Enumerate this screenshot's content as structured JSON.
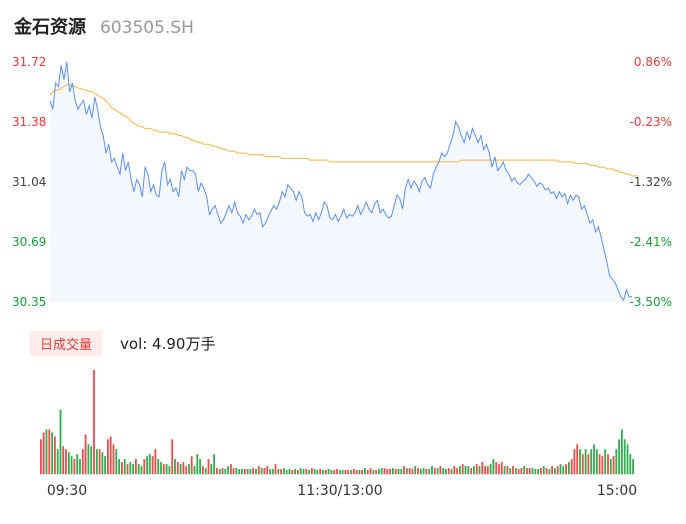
{
  "header": {
    "name": "金石资源",
    "code": "603505.SH"
  },
  "vol_tag": "日成交量",
  "vol_text": "vol: 4.90万手",
  "colors": {
    "price": "#5b8ff9",
    "avg": "#f5b540",
    "up": "#f04a4a",
    "down": "#2eae4e",
    "text_up": "#e83a3a",
    "text_down": "#1a9c3c"
  },
  "chart_data": [
    {
      "type": "line",
      "title": "",
      "x_ticks": [
        "09:30",
        "11:30/13:00",
        "15:00"
      ],
      "y_ticks_left": [
        "31.72",
        "31.38",
        "31.04",
        "30.69",
        "30.35"
      ],
      "y_ticks_right": [
        "0.86%",
        "-0.23%",
        "-1.32%",
        "-2.41%",
        "-3.50%"
      ],
      "ylim": [
        30.35,
        31.72
      ],
      "series": [
        {
          "values": [
            31.5,
            31.45,
            31.6,
            31.58,
            31.7,
            31.62,
            31.72,
            31.55,
            31.6,
            31.5,
            31.45,
            31.48,
            31.5,
            31.42,
            31.47,
            31.4,
            31.52,
            31.45,
            31.35,
            31.3,
            31.2,
            31.25,
            31.15,
            31.17,
            31.12,
            31.08,
            31.2,
            31.1,
            31.15,
            31.05,
            30.98,
            31.05,
            31.02,
            30.95,
            31.12,
            31.08,
            30.98,
            31.02,
            30.96,
            30.95,
            31.1,
            31.15,
            31.02,
            31.05,
            30.98,
            31.0,
            30.95,
            31.1,
            31.05,
            31.12,
            31.1,
            31.1,
            31.08,
            30.98,
            31.03,
            31.0,
            30.95,
            30.85,
            30.88,
            30.9,
            30.85,
            30.8,
            30.82,
            30.86,
            30.9,
            30.86,
            30.92,
            30.86,
            30.84,
            30.8,
            30.85,
            30.82,
            30.84,
            30.88,
            30.85,
            30.86,
            30.78,
            30.8,
            30.84,
            30.87,
            30.9,
            30.88,
            30.92,
            30.98,
            30.95,
            31.02,
            31.0,
            30.98,
            30.93,
            30.98,
            30.95,
            30.86,
            30.84,
            30.85,
            30.81,
            30.86,
            30.82,
            30.86,
            30.92,
            30.9,
            30.83,
            30.82,
            30.85,
            30.81,
            30.84,
            30.88,
            30.83,
            30.85,
            30.84,
            30.86,
            30.9,
            30.85,
            30.88,
            30.92,
            30.88,
            30.86,
            30.91,
            30.93,
            30.86,
            30.88,
            30.85,
            30.83,
            30.84,
            30.9,
            30.96,
            30.94,
            30.88,
            31.0,
            31.05,
            31.0,
            31.04,
            31.02,
            30.98,
            31.04,
            31.06,
            31.02,
            31.0,
            31.08,
            31.12,
            31.15,
            31.2,
            31.18,
            31.2,
            31.25,
            31.3,
            31.38,
            31.35,
            31.3,
            31.26,
            31.32,
            31.28,
            31.34,
            31.3,
            31.26,
            31.3,
            31.22,
            31.25,
            31.2,
            31.12,
            31.18,
            31.1,
            31.12,
            31.15,
            31.1,
            31.08,
            31.04,
            31.06,
            31.03,
            31.02,
            31.04,
            31.05,
            31.08,
            31.06,
            31.04,
            31.01,
            31.03,
            31.02,
            30.99,
            31.0,
            30.97,
            30.98,
            30.94,
            30.98,
            30.95,
            30.97,
            30.91,
            30.96,
            30.93,
            30.96,
            30.95,
            30.88,
            30.9,
            30.85,
            30.8,
            30.82,
            30.75,
            30.78,
            30.72,
            30.65,
            30.58,
            30.5,
            30.48,
            30.46,
            30.42,
            30.38,
            30.36,
            30.42,
            30.38,
            30.38
          ]
        },
        {
          "values": [
            31.53,
            31.55,
            31.56,
            31.56,
            31.57,
            31.58,
            31.59,
            31.59,
            31.58,
            31.58,
            31.57,
            31.57,
            31.56,
            31.56,
            31.55,
            31.55,
            31.54,
            31.53,
            31.52,
            31.51,
            31.5,
            31.48,
            31.46,
            31.45,
            31.44,
            31.43,
            31.42,
            31.41,
            31.4,
            31.38,
            31.37,
            31.36,
            31.35,
            31.35,
            31.34,
            31.34,
            31.34,
            31.33,
            31.33,
            31.32,
            31.32,
            31.32,
            31.32,
            31.31,
            31.31,
            31.31,
            31.3,
            31.3,
            31.29,
            31.29,
            31.28,
            31.27,
            31.27,
            31.26,
            31.26,
            31.25,
            31.25,
            31.25,
            31.24,
            31.24,
            31.23,
            31.23,
            31.22,
            31.22,
            31.21,
            31.21,
            31.21,
            31.2,
            31.2,
            31.2,
            31.2,
            31.19,
            31.19,
            31.19,
            31.19,
            31.19,
            31.19,
            31.18,
            31.18,
            31.18,
            31.18,
            31.18,
            31.18,
            31.17,
            31.17,
            31.17,
            31.17,
            31.17,
            31.17,
            31.17,
            31.17,
            31.17,
            31.17,
            31.16,
            31.16,
            31.16,
            31.16,
            31.16,
            31.16,
            31.16,
            31.15,
            31.15,
            31.15,
            31.15,
            31.15,
            31.15,
            31.15,
            31.15,
            31.15,
            31.15,
            31.15,
            31.15,
            31.15,
            31.15,
            31.15,
            31.15,
            31.15,
            31.15,
            31.15,
            31.15,
            31.15,
            31.15,
            31.15,
            31.15,
            31.15,
            31.15,
            31.15,
            31.15,
            31.15,
            31.15,
            31.15,
            31.15,
            31.15,
            31.15,
            31.15,
            31.15,
            31.15,
            31.15,
            31.15,
            31.15,
            31.15,
            31.15,
            31.15,
            31.15,
            31.15,
            31.15,
            31.15,
            31.16,
            31.16,
            31.16,
            31.16,
            31.16,
            31.16,
            31.16,
            31.16,
            31.16,
            31.16,
            31.16,
            31.16,
            31.16,
            31.16,
            31.16,
            31.16,
            31.16,
            31.16,
            31.16,
            31.16,
            31.16,
            31.16,
            31.16,
            31.16,
            31.16,
            31.16,
            31.16,
            31.16,
            31.16,
            31.16,
            31.16,
            31.16,
            31.16,
            31.16,
            31.16,
            31.15,
            31.15,
            31.15,
            31.15,
            31.15,
            31.15,
            31.14,
            31.14,
            31.14,
            31.14,
            31.14,
            31.13,
            31.13,
            31.13,
            31.12,
            31.12,
            31.12,
            31.11,
            31.11,
            31.11,
            31.1,
            31.1,
            31.09,
            31.09,
            31.08,
            31.08,
            31.07,
            31.07,
            31.07
          ]
        }
      ]
    },
    {
      "type": "bar",
      "title": "",
      "up": [
        1,
        1,
        0,
        1,
        0,
        1,
        0,
        0,
        1,
        1,
        0,
        0,
        1,
        0,
        0,
        1,
        1,
        0,
        0,
        1,
        0,
        1,
        0,
        0,
        1,
        1,
        1,
        0,
        0,
        1,
        0,
        1,
        0,
        0,
        1,
        0,
        0,
        1,
        0,
        0,
        1,
        1,
        0,
        0,
        1,
        0,
        0,
        1,
        0,
        1,
        0,
        1,
        1,
        0,
        1,
        0,
        0,
        0,
        1,
        0,
        1,
        0,
        0,
        1,
        0,
        1,
        0,
        0,
        1,
        1,
        0,
        0,
        0,
        1,
        0,
        0,
        1,
        0,
        1,
        0,
        1,
        1,
        0,
        0,
        1,
        0,
        1,
        0,
        0,
        0,
        1,
        0,
        1,
        0,
        0,
        1,
        0,
        1,
        0,
        0,
        1,
        0,
        1,
        0,
        0,
        1,
        1,
        0,
        0,
        1,
        1,
        0,
        1,
        1,
        0,
        1,
        0,
        1,
        1,
        0,
        1,
        0,
        0,
        1,
        1,
        1,
        0,
        1,
        0,
        0,
        1,
        0,
        1,
        1,
        0,
        1,
        0,
        0,
        1,
        0,
        0,
        1,
        0,
        1,
        0,
        0,
        1,
        0,
        1,
        1,
        0,
        1,
        0,
        0,
        1,
        0,
        1,
        0,
        1,
        1,
        1,
        0,
        0,
        1,
        1,
        1,
        0,
        1,
        0,
        1,
        0,
        1,
        1,
        0,
        1,
        1,
        0,
        0,
        0,
        1,
        0,
        1,
        0,
        1,
        0,
        1,
        0,
        0,
        1,
        0,
        1,
        1,
        1,
        0,
        1,
        0,
        1,
        0,
        0,
        0,
        1,
        1,
        0,
        1,
        0,
        1
      ],
      "values": [
        3.5,
        4.2,
        4.5,
        4.5,
        4.2,
        3.8,
        2.5,
        6.5,
        2.8,
        2.5,
        2.2,
        1.8,
        1.5,
        2.0,
        1.5,
        2.5,
        4.0,
        3.0,
        2.8,
        10.5,
        2.5,
        2.5,
        2.2,
        1.8,
        3.5,
        3.8,
        3.0,
        2.5,
        1.5,
        1.2,
        1.5,
        1.0,
        1.2,
        1.0,
        1.5,
        1.0,
        0.8,
        1.5,
        1.8,
        2.0,
        1.8,
        2.5,
        1.5,
        1.2,
        1.0,
        1.0,
        0.8,
        3.5,
        1.5,
        1.2,
        1.0,
        1.2,
        0.8,
        1.0,
        1.8,
        0.8,
        2.0,
        1.5,
        0.8,
        0.6,
        1.5,
        1.0,
        2.0,
        0.6,
        0.5,
        0.6,
        0.5,
        0.8,
        1.0,
        0.6,
        0.6,
        0.5,
        0.5,
        0.5,
        0.5,
        0.5,
        0.6,
        0.5,
        0.8,
        0.6,
        0.6,
        0.8,
        0.5,
        0.5,
        1.0,
        0.5,
        0.5,
        0.6,
        0.4,
        0.5,
        0.4,
        0.5,
        0.4,
        0.6,
        0.5,
        0.5,
        0.4,
        0.6,
        0.5,
        0.4,
        0.5,
        0.4,
        0.4,
        0.5,
        0.4,
        0.4,
        0.5,
        0.4,
        0.4,
        0.4,
        0.4,
        0.4,
        0.5,
        0.4,
        0.4,
        0.4,
        0.6,
        0.4,
        0.6,
        0.4,
        0.4,
        0.5,
        0.6,
        0.6,
        0.5,
        0.5,
        0.6,
        0.5,
        0.5,
        0.5,
        0.8,
        0.6,
        0.6,
        0.5,
        0.8,
        0.6,
        0.5,
        0.6,
        0.5,
        0.5,
        0.8,
        0.6,
        0.6,
        0.8,
        0.6,
        0.5,
        0.6,
        0.5,
        0.8,
        0.6,
        0.8,
        1.0,
        0.8,
        0.8,
        0.6,
        0.8,
        1.0,
        0.8,
        1.2,
        0.8,
        0.8,
        1.0,
        1.5,
        1.2,
        1.0,
        1.2,
        0.8,
        0.8,
        0.6,
        0.8,
        0.6,
        0.5,
        0.6,
        0.8,
        0.6,
        0.6,
        0.6,
        0.5,
        0.5,
        0.6,
        0.8,
        0.6,
        0.5,
        0.8,
        0.6,
        0.8,
        1.0,
        0.8,
        1.0,
        1.2,
        1.5,
        2.5,
        3.0,
        2.5,
        2.0,
        2.5,
        2.0,
        2.5,
        3.0,
        2.5,
        2.0,
        1.8,
        2.5,
        2.0,
        1.5,
        1.8,
        2.5,
        3.5,
        4.5,
        3.5,
        3.0,
        2.0,
        1.5
      ]
    }
  ]
}
